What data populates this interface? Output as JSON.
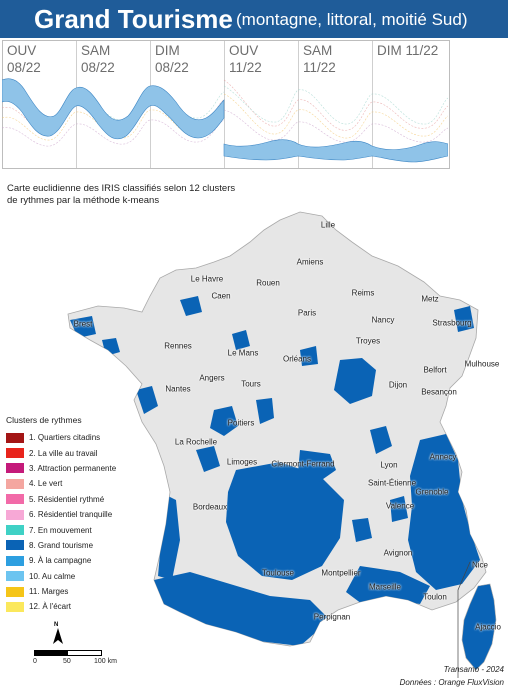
{
  "header": {
    "title": "Grand Tourisme",
    "subtitle": "(montagne, littoral, moitié Sud)",
    "bg_color": "#1f5c99"
  },
  "profiles": [
    {
      "day": "OUV",
      "month": "08/22"
    },
    {
      "day": "SAM",
      "month": "08/22"
    },
    {
      "day": "DIM",
      "month": "08/22"
    },
    {
      "day": "OUV",
      "month": "11/22"
    },
    {
      "day": "SAM",
      "month": "11/22"
    },
    {
      "day": "DIM 11/22",
      "month": ""
    }
  ],
  "map_title": "Carte euclidienne des IRIS classifiés selon 12 clusters de rythmes par la méthode k-means",
  "legend": {
    "title": "Clusters de rythmes",
    "items": [
      {
        "label": "1. Quartiers citadins",
        "color": "#a31515"
      },
      {
        "label": "2. La ville au travail",
        "color": "#e8241c"
      },
      {
        "label": "3. Attraction permanente",
        "color": "#c41a7a"
      },
      {
        "label": "4. Le vert",
        "color": "#f4a6a0"
      },
      {
        "label": "5. Résidentiel rythmé",
        "color": "#f26aa8"
      },
      {
        "label": "6. Résidentiel tranquille",
        "color": "#f7a8d6"
      },
      {
        "label": "7. En mouvement",
        "color": "#3fd1c5"
      },
      {
        "label": "8. Grand tourisme",
        "color": "#0a63b5"
      },
      {
        "label": "9. À la campagne",
        "color": "#2d9fe0"
      },
      {
        "label": "10. Au calme",
        "color": "#6cc4f0"
      },
      {
        "label": "11. Marges",
        "color": "#f5c518"
      },
      {
        "label": "12. À l'écart",
        "color": "#fbe85c"
      }
    ]
  },
  "cities": {
    "lille": "Lille",
    "amiens": "Amiens",
    "le_havre": "Le Havre",
    "rouen": "Rouen",
    "caen": "Caen",
    "reims": "Reims",
    "metz": "Metz",
    "brest": "Brest",
    "paris": "Paris",
    "nancy": "Nancy",
    "strasbourg": "Strasbourg",
    "rennes": "Rennes",
    "le_mans": "Le Mans",
    "troyes": "Troyes",
    "orleans": "Orléans",
    "belfort": "Belfort",
    "mulhouse": "Mulhouse",
    "angers": "Angers",
    "tours": "Tours",
    "nantes": "Nantes",
    "dijon": "Dijon",
    "besancon": "Besançon",
    "poitiers": "Poitiers",
    "la_rochelle": "La Rochelle",
    "annecy": "Annecy",
    "limoges": "Limoges",
    "clermont": "Clermont-Ferrand",
    "lyon": "Lyon",
    "saint_etienne": "Saint-Étienne",
    "grenoble": "Grenoble",
    "bordeaux": "Bordeaux",
    "valence": "Valence",
    "avignon": "Avignon",
    "nice": "Nice",
    "toulouse": "Toulouse",
    "montpellier": "Montpellier",
    "marseille": "Marseille",
    "toulon": "Toulon",
    "ajaccio": "Ajaccio",
    "perpignan": "Perpignan"
  },
  "scale": {
    "zero": "0",
    "mid": "50",
    "end": "100 km",
    "north": "N"
  },
  "credits": {
    "author": "Transamo - 2024",
    "source": "Données : Orange FluxVision"
  },
  "colors": {
    "grand_tourisme": "#0a63b5",
    "band": "#8fc3e8",
    "background_iris": "#e6e6e6"
  }
}
